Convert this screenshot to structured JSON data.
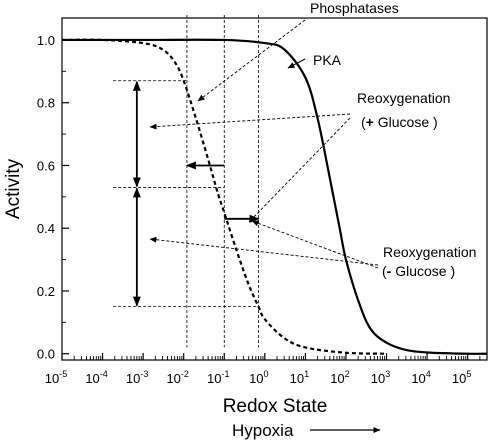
{
  "chart_data": {
    "type": "line",
    "xlabel": "Redox State",
    "ylabel": "Activity",
    "x_scale": "log",
    "xlim": [
      1e-05,
      300000
    ],
    "ylim": [
      -0.02,
      1.07
    ],
    "x_ticks": [
      {
        "value": 1e-05,
        "base": "10",
        "exp": "-5"
      },
      {
        "value": 0.0001,
        "base": "10",
        "exp": "-4"
      },
      {
        "value": 0.001,
        "base": "10",
        "exp": "-3"
      },
      {
        "value": 0.01,
        "base": "10",
        "exp": "-2"
      },
      {
        "value": 0.1,
        "base": "10",
        "exp": "-1"
      },
      {
        "value": 1,
        "base": "10",
        "exp": "0"
      },
      {
        "value": 10,
        "base": "10",
        "exp": "1"
      },
      {
        "value": 100,
        "base": "10",
        "exp": "2"
      },
      {
        "value": 1000,
        "base": "10",
        "exp": "3"
      },
      {
        "value": 10000,
        "base": "10",
        "exp": "4"
      },
      {
        "value": 100000,
        "base": "10",
        "exp": "5"
      }
    ],
    "y_ticks": [
      {
        "value": 0.0,
        "label": "0.0"
      },
      {
        "value": 0.2,
        "label": "0.2"
      },
      {
        "value": 0.4,
        "label": "0.4"
      },
      {
        "value": 0.6,
        "label": "0.6"
      },
      {
        "value": 0.8,
        "label": "0.8"
      },
      {
        "value": 1.0,
        "label": "1.0"
      }
    ],
    "series": [
      {
        "name": "PKA",
        "style": "solid",
        "x": [
          1e-05,
          0.001,
          0.1,
          1,
          3,
          10,
          20,
          40,
          70,
          100,
          200,
          400,
          1000,
          3000,
          10000,
          100000,
          300000
        ],
        "y": [
          1.0,
          1.0,
          1.0,
          0.99,
          0.97,
          0.88,
          0.75,
          0.56,
          0.4,
          0.3,
          0.17,
          0.08,
          0.035,
          0.012,
          0.004,
          0.0,
          0.0
        ]
      },
      {
        "name": "Phosphatases",
        "style": "dashed",
        "x": [
          1e-05,
          0.0001,
          0.001,
          0.003,
          0.006,
          0.01,
          0.02,
          0.04,
          0.07,
          0.1,
          0.2,
          0.4,
          0.7,
          1,
          3,
          10,
          100,
          1000
        ],
        "y": [
          1.0,
          1.0,
          0.99,
          0.97,
          0.93,
          0.87,
          0.75,
          0.62,
          0.51,
          0.45,
          0.33,
          0.22,
          0.15,
          0.11,
          0.05,
          0.02,
          0.003,
          0.0
        ]
      }
    ],
    "vertical_guides_x": [
      0.012,
      0.1,
      0.7
    ],
    "horizontal_guides": [
      {
        "y": 0.87,
        "x_from": 0.001,
        "x_to": 0.012
      },
      {
        "y": 0.53,
        "x_from": 0.001,
        "x_to": 0.1
      },
      {
        "y": 0.15,
        "x_from": 0.001,
        "x_to": 0.7
      }
    ],
    "double_arrows": [
      {
        "x": 0.0007,
        "y_from": 0.87,
        "y_to": 0.53
      },
      {
        "x": 0.0007,
        "y_from": 0.53,
        "y_to": 0.15
      }
    ],
    "shift_arrows": [
      {
        "y": 0.6,
        "x_from": 0.1,
        "x_to": 0.012
      },
      {
        "y": 0.43,
        "x_from": 0.1,
        "x_to": 0.7
      }
    ],
    "annotations": {
      "phosphatases": {
        "text": "Phosphatases"
      },
      "pka": {
        "text": "PKA"
      },
      "reox_plus_line1": {
        "text": "Reoxygenation"
      },
      "reox_plus_line2_open": {
        "text": "("
      },
      "reox_plus_line2_sign": {
        "text": "+"
      },
      "reox_plus_line2_rest": {
        "text": " Glucose )"
      },
      "reox_minus_line1": {
        "text": "Reoxygenation"
      },
      "reox_minus_line2_open": {
        "text": "("
      },
      "reox_minus_line2_sign": {
        "text": "-"
      },
      "reox_minus_line2_rest": {
        "text": " Glucose )"
      },
      "hypoxia": {
        "text": "Hypoxia"
      }
    }
  }
}
